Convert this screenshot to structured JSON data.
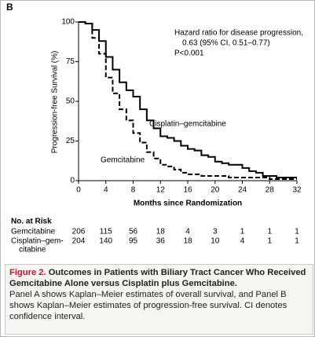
{
  "chart_data": {
    "type": "step",
    "panel": "B",
    "ylabel": "Progression-free Survival (%)",
    "xlabel": "Months since Randomization",
    "annotations": [
      "Hazard ratio for disease progression,",
      "0.63 (95% CI, 0.51–0.77)",
      "P<0.001"
    ],
    "x": [
      0,
      1,
      2,
      3,
      4,
      5,
      6,
      7,
      8,
      9,
      10,
      11,
      12,
      13,
      14,
      15,
      16,
      17,
      18,
      19,
      20,
      21,
      22,
      23,
      24,
      25,
      26,
      27,
      28,
      29,
      30,
      31,
      32
    ],
    "series": [
      {
        "name": "Cisplatin–gemcitabine",
        "color": "#000000",
        "dashed": false,
        "values": [
          100,
          99,
          95,
          88,
          78,
          70,
          62,
          57,
          53,
          45,
          38,
          33,
          28,
          27,
          25,
          22,
          20,
          19,
          16,
          15,
          12,
          11,
          10,
          10,
          8,
          6,
          5,
          3,
          3,
          2,
          2,
          2,
          2
        ]
      },
      {
        "name": "Gemcitabine",
        "color": "#000000",
        "dashed": true,
        "values": [
          100,
          99,
          90,
          80,
          65,
          55,
          45,
          38,
          30,
          24,
          18,
          14,
          10,
          9,
          7,
          5,
          4,
          4,
          3,
          3,
          3,
          3,
          2,
          2,
          2,
          2,
          2,
          2,
          1,
          1,
          1,
          1,
          1
        ]
      }
    ],
    "xlim": [
      0,
      32
    ],
    "xticks": [
      0,
      4,
      8,
      12,
      16,
      20,
      24,
      28,
      32
    ],
    "ylim": [
      0,
      100
    ],
    "yticks": [
      0,
      25,
      50,
      75,
      100
    ],
    "at_risk": {
      "title": "No. at Risk",
      "rows": [
        {
          "label": [
            "Gemcitabine"
          ],
          "values": [
            206,
            115,
            56,
            18,
            4,
            3,
            1,
            1,
            1
          ]
        },
        {
          "label": [
            "Cisplatin–gem-",
            "citabine"
          ],
          "values": [
            204,
            140,
            95,
            36,
            18,
            10,
            4,
            1,
            1
          ]
        }
      ]
    }
  },
  "caption": {
    "label": "Figure 2.",
    "title": "Outcomes in Patients with Biliary Tract Cancer Who Received Gemcitabine Alone versus Cisplatin plus Gemcitabine.",
    "text": "Panel A shows Kaplan–Meier estimates of overall survival, and Panel B shows Kaplan–Meier estimates of progression-free survival. CI denotes confidence interval."
  }
}
